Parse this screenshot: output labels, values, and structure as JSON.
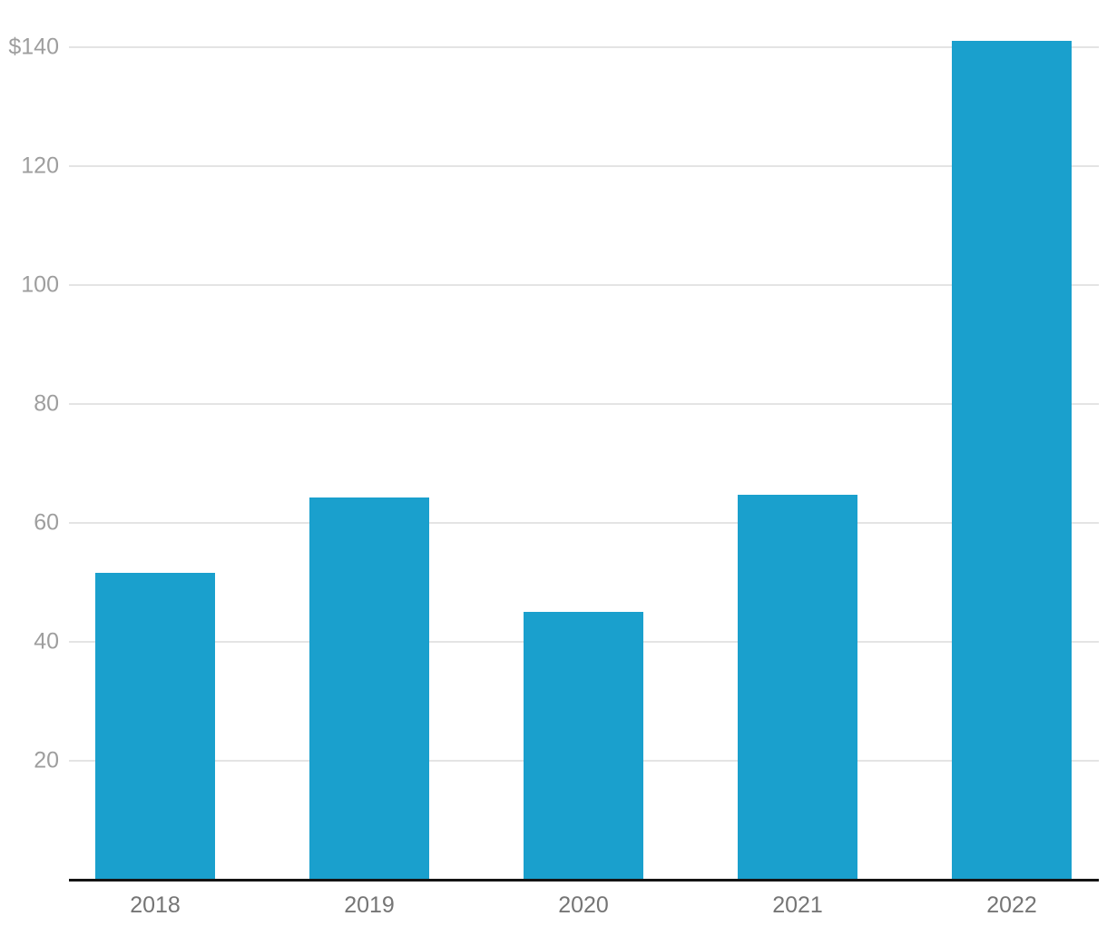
{
  "chart_data": {
    "type": "bar",
    "title": "",
    "categories": [
      "2018",
      "2019",
      "2020",
      "2021",
      "2022"
    ],
    "values": [
      51.6,
      64.2,
      45,
      64.8,
      141
    ],
    "series": [
      {
        "name": "value",
        "values": [
          51.6,
          64.2,
          45,
          64.8,
          141
        ]
      }
    ],
    "xlabel": "",
    "ylabel": "",
    "unit_prefix": "$",
    "ylim": [
      0,
      145
    ],
    "yticks": [
      {
        "value": 20,
        "label": "20"
      },
      {
        "value": 40,
        "label": "40"
      },
      {
        "value": 60,
        "label": "60"
      },
      {
        "value": 80,
        "label": "80"
      },
      {
        "value": 100,
        "label": "100"
      },
      {
        "value": 120,
        "label": "120"
      },
      {
        "value": 140,
        "label": "$140"
      }
    ],
    "grid": "horizontal",
    "legend_position": "none",
    "colors": {
      "bar": "#1aa0cd",
      "gridline": "#e4e4e4",
      "axis_line": "#141414",
      "ytick_label": "#9e9e9e",
      "xtick_label": "#757575",
      "background": "#ffffff"
    }
  }
}
